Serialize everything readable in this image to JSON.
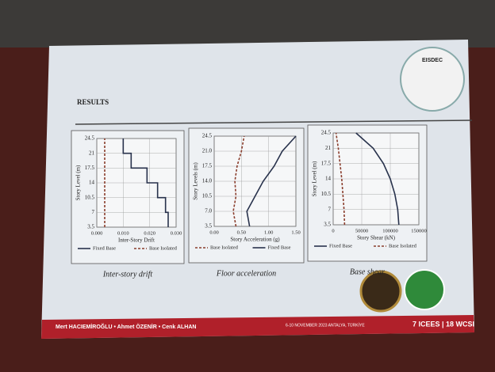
{
  "slide": {
    "heading": "RESULTS",
    "logo": "EISDEC",
    "authors": "Mert HACIEMİROĞLU • Ahmet ÖZENİR • Cenk ALHAN",
    "event_date": "6-10 NOVEMBER 2023 ANTALYA, TÜRKİYE",
    "event_name": "7 ICEES | 18 WCSI"
  },
  "chart_data": [
    {
      "type": "line",
      "caption": "Inter-story drift",
      "x_label": "Inter-Story Drift",
      "y_label": "Story Level (m)",
      "xlim": [
        0,
        0.03
      ],
      "xticks": [
        {
          "value": 0,
          "label": "0.000"
        },
        {
          "value": 0.01,
          "label": "0.010"
        },
        {
          "value": 0.02,
          "label": "0.020"
        },
        {
          "value": 0.03,
          "label": "0.030"
        }
      ],
      "ylim": [
        3.5,
        24.5
      ],
      "yticks": [
        3.5,
        7,
        10.5,
        14,
        17.5,
        21,
        24.5
      ],
      "grid": true,
      "series": [
        {
          "name": "Fixed Base",
          "color": "#28324c",
          "dash": false,
          "x": [
            0.027,
            0.027,
            0.026,
            0.026,
            0.023,
            0.023,
            0.019,
            0.019,
            0.013,
            0.013,
            0.01,
            0.01
          ],
          "values": [
            3.5,
            7,
            7,
            10.5,
            10.5,
            14,
            14,
            17.5,
            17.5,
            21,
            21,
            24.5
          ]
        },
        {
          "name": "Base Isolated",
          "color": "#8a3d2c",
          "dash": true,
          "x": [
            0.003,
            0.003,
            0.003,
            0.003,
            0.003,
            0.003,
            0.003
          ],
          "values": [
            3.5,
            7,
            10.5,
            14,
            17.5,
            21,
            24.5
          ]
        }
      ]
    },
    {
      "type": "line",
      "caption": "Floor acceleration",
      "x_label": "Story Acceleration (g)",
      "y_label": "Story Levels (m)",
      "xlim": [
        0,
        1.5
      ],
      "xticks": [
        {
          "value": 0,
          "label": "0.00"
        },
        {
          "value": 0.5,
          "label": "0.50"
        },
        {
          "value": 1,
          "label": "1.00"
        },
        {
          "value": 1.5,
          "label": "1.50"
        }
      ],
      "ylim": [
        3.5,
        24.5
      ],
      "yticks": [
        3.5,
        {
          "value": 7,
          "label": "7.0"
        },
        10.5,
        {
          "value": 14,
          "label": "14.0"
        },
        17.5,
        {
          "value": 21,
          "label": "21.0"
        },
        24.5
      ],
      "grid": true,
      "series": [
        {
          "name": "Base Isolated",
          "color": "#8a3d2c",
          "dash": true,
          "x": [
            0.4,
            0.35,
            0.4,
            0.38,
            0.42,
            0.5,
            0.55
          ],
          "values": [
            3.5,
            7,
            10.5,
            14,
            17.5,
            21,
            24.5
          ]
        },
        {
          "name": "Fixed Base",
          "color": "#28324c",
          "dash": false,
          "x": [
            0.65,
            0.6,
            0.75,
            0.9,
            1.1,
            1.25,
            1.5
          ],
          "values": [
            3.5,
            7,
            10.5,
            14,
            17.5,
            21,
            24.5
          ]
        }
      ]
    },
    {
      "type": "line",
      "caption": "Base shear",
      "x_label": "Story Shear (kN)",
      "y_label": "Story Level (m)",
      "xlim": [
        0,
        150000
      ],
      "xticks": [
        0,
        50000,
        100000,
        150000
      ],
      "ylim": [
        3.5,
        24.5
      ],
      "yticks": [
        3.5,
        7,
        10.5,
        14,
        17.5,
        21,
        24.5
      ],
      "grid": true,
      "series": [
        {
          "name": "Fixed Base",
          "color": "#28324c",
          "dash": false,
          "x": [
            115000,
            113000,
            108000,
            100000,
            88000,
            70000,
            40000
          ],
          "values": [
            3.5,
            7,
            10.5,
            14,
            17.5,
            21,
            24.5
          ]
        },
        {
          "name": "Base Isolated",
          "color": "#8a3d2c",
          "dash": true,
          "x": [
            20000,
            19000,
            17000,
            15000,
            12000,
            9000,
            5000
          ],
          "values": [
            3.5,
            7,
            10.5,
            14,
            17.5,
            21,
            24.5
          ]
        }
      ]
    }
  ]
}
